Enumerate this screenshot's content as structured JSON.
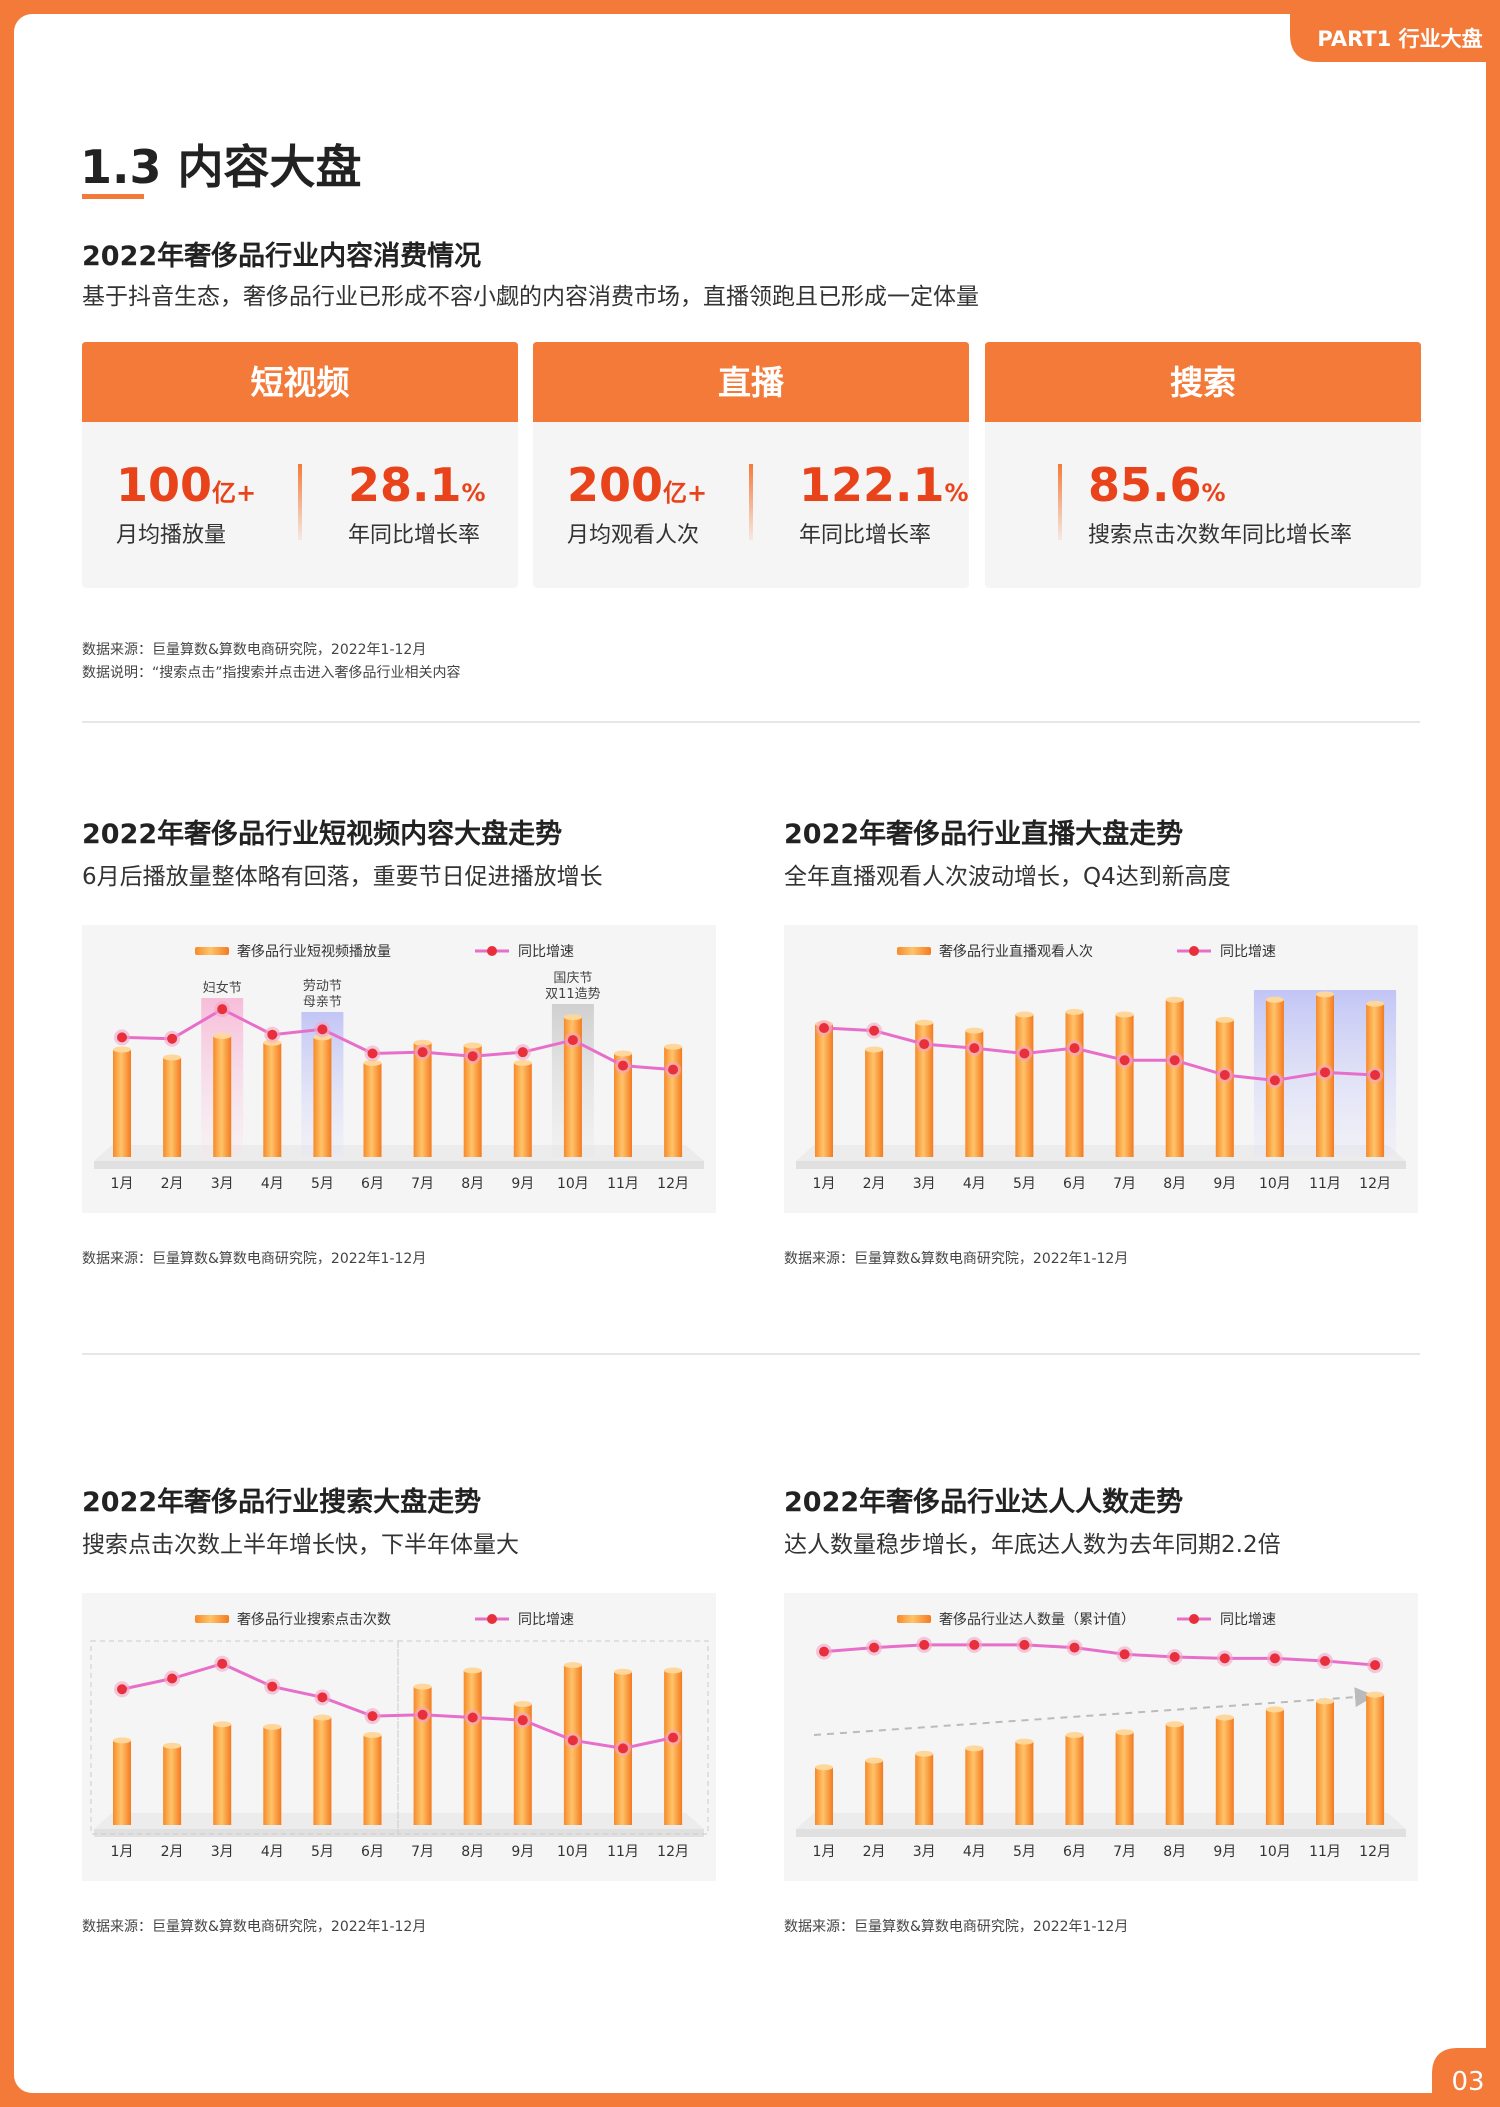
{
  "header": {
    "part": "PART1 行业大盘",
    "page": "03"
  },
  "section": {
    "title": "1.3 内容大盘",
    "heading": "2022年奢侈品行业内容消费情况",
    "desc": "基于抖音生态，奢侈品行业已形成不容小觑的内容消费市场，直播领跑且已形成一定体量"
  },
  "kpis": [
    {
      "title": "短视频",
      "items": [
        {
          "value": "100",
          "unit": "亿+",
          "label": "月均播放量"
        },
        {
          "value": "28.1",
          "unit": "%",
          "label": "年同比增长率"
        }
      ]
    },
    {
      "title": "直播",
      "items": [
        {
          "value": "200",
          "unit": "亿+",
          "label": "月均观看人次"
        },
        {
          "value": "122.1",
          "unit": "%",
          "label": "年同比增长率"
        }
      ]
    },
    {
      "title": "搜索",
      "items": [
        {
          "value": "85.6",
          "unit": "%",
          "label": "搜索点击次数年同比增长率"
        }
      ]
    }
  ],
  "notes": [
    "数据来源：巨量算数&算数电商研究院，2022年1-12月",
    "数据说明：“搜索点击”指搜索并点击进入奢侈品行业相关内容"
  ],
  "chart_data": [
    {
      "type": "bar_line",
      "title": "2022年奢侈品行业短视频内容大盘走势",
      "subtitle": "6月后播放量整体略有回落，重要节日促进播放增长",
      "categories": [
        "1月",
        "2月",
        "3月",
        "4月",
        "5月",
        "6月",
        "7月",
        "8月",
        "9月",
        "10月",
        "11月",
        "12月"
      ],
      "series": [
        {
          "name": "奢侈品行业短视频播放量",
          "color": "#f7902f",
          "values": [
            80,
            74,
            90,
            85,
            89,
            70,
            85,
            83,
            70,
            104,
            77,
            82
          ]
        },
        {
          "name": "同比增速",
          "color": "#e86fc9",
          "axis": "y2",
          "values": [
            89,
            88,
            110,
            91,
            95,
            77,
            78,
            75,
            78,
            87,
            68,
            65
          ]
        }
      ],
      "annotations": [
        [
          "妇女节"
        ],
        [
          "劳动节",
          "母亲节"
        ],
        [
          "国庆节",
          "双11造势"
        ]
      ],
      "source": "数据来源：巨量算数&算数电商研究院，2022年1-12月"
    },
    {
      "type": "bar_line",
      "title": "2022年奢侈品行业直播大盘走势",
      "subtitle": "全年直播观看人次波动增长，Q4达到新高度",
      "categories": [
        "1月",
        "2月",
        "3月",
        "4月",
        "5月",
        "6月",
        "7月",
        "8月",
        "9月",
        "10月",
        "11月",
        "12月"
      ],
      "series": [
        {
          "name": "奢侈品行业直播观看人次",
          "color": "#f7902f",
          "values": [
            99,
            80,
            100,
            94,
            106,
            108,
            106,
            117,
            102,
            117,
            121,
            114
          ]
        },
        {
          "name": "同比增速",
          "color": "#e86fc9",
          "axis": "y2",
          "values": [
            96,
            94,
            84,
            81,
            77,
            81,
            72,
            72,
            61,
            57,
            63,
            61
          ]
        }
      ],
      "source": "数据来源：巨量算数&算数电商研究院，2022年1-12月"
    },
    {
      "type": "bar_line",
      "title": "2022年奢侈品行业搜索大盘走势",
      "subtitle": "搜索点击次数上半年增长快，下半年体量大",
      "categories": [
        "1月",
        "2月",
        "3月",
        "4月",
        "5月",
        "6月",
        "7月",
        "8月",
        "9月",
        "10月",
        "11月",
        "12月"
      ],
      "series": [
        {
          "name": "奢侈品行业搜索点击次数",
          "color": "#f7902f",
          "values": [
            63,
            59,
            75,
            73,
            80,
            67,
            103,
            115,
            90,
            119,
            114,
            115
          ]
        },
        {
          "name": "同比增速",
          "color": "#e86fc9",
          "axis": "y2",
          "values": [
            101,
            109,
            120,
            103,
            95,
            81,
            82,
            80,
            78,
            63,
            57,
            65
          ]
        }
      ],
      "source": "数据来源：巨量算数&算数电商研究院，2022年1-12月"
    },
    {
      "type": "bar_line",
      "title": "2022年奢侈品行业达人人数走势",
      "subtitle": "达人数量稳步增长，年底达人数为去年同期2.2倍",
      "categories": [
        "1月",
        "2月",
        "3月",
        "4月",
        "5月",
        "6月",
        "7月",
        "8月",
        "9月",
        "10月",
        "11月",
        "12月"
      ],
      "series": [
        {
          "name": "奢侈品行业达人数量（累计值）",
          "color": "#f7902f",
          "values": [
            43,
            48,
            53,
            57,
            62,
            67,
            69,
            75,
            80,
            86,
            92,
            97
          ]
        },
        {
          "name": "同比增速",
          "color": "#e86fc9",
          "axis": "y2",
          "values": [
            129,
            132,
            134,
            134,
            134,
            132,
            127,
            125,
            124,
            124,
            122,
            119
          ]
        }
      ],
      "source": "数据来源：巨量算数&算数电商研究院，2022年1-12月"
    }
  ]
}
